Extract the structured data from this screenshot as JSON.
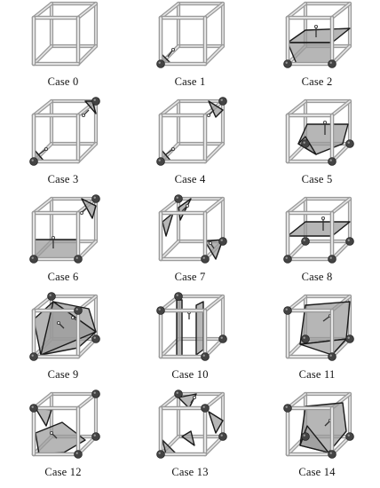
{
  "figure": {
    "cases": [
      {
        "label": "Case 0"
      },
      {
        "label": "Case 1"
      },
      {
        "label": "Case 2"
      },
      {
        "label": "Case 3"
      },
      {
        "label": "Case 4"
      },
      {
        "label": "Case 5"
      },
      {
        "label": "Case 6"
      },
      {
        "label": "Case 7"
      },
      {
        "label": "Case 8"
      },
      {
        "label": "Case 9"
      },
      {
        "label": "Case 10"
      },
      {
        "label": "Case 11"
      },
      {
        "label": "Case 12"
      },
      {
        "label": "Case 13"
      },
      {
        "label": "Case 14"
      }
    ],
    "colors": {
      "edge": "#9a9a9a",
      "edge_dark": "#555555",
      "surface": "#9a9a9a",
      "surface_stroke": "#1a1a1a",
      "vertex": "#444444",
      "caption": "#111111"
    }
  }
}
